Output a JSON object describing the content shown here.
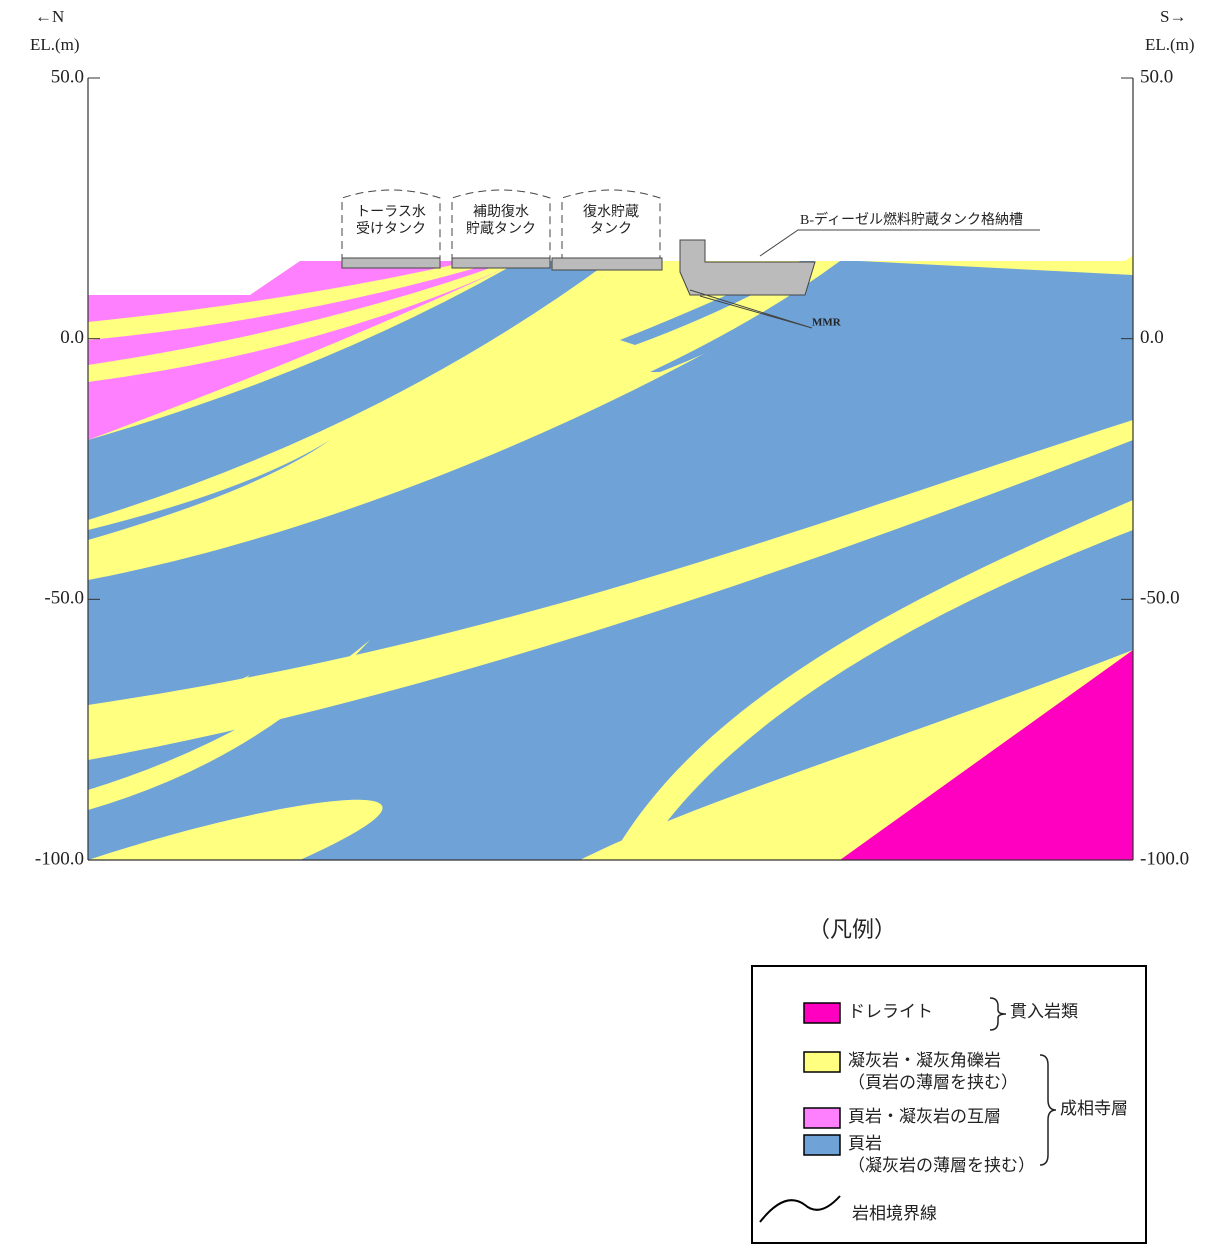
{
  "header": {
    "north": "←N",
    "south": "S→",
    "left_axis_label": "EL.(m)",
    "right_axis_label": "EL.(m)"
  },
  "axis": {
    "ylim": [
      -100,
      50
    ],
    "yticks": [
      {
        "value": 50,
        "label": "50.0"
      },
      {
        "value": 0,
        "label": "0.0"
      },
      {
        "value": -50,
        "label": "-50.0"
      },
      {
        "value": -100,
        "label": "-100.0"
      }
    ]
  },
  "structures": [
    {
      "lines": [
        "トーラス水",
        "受けタンク"
      ]
    },
    {
      "lines": [
        "補助復水",
        "貯蔵タンク"
      ]
    },
    {
      "lines": [
        "復水貯蔵",
        "タンク"
      ]
    }
  ],
  "diesel_label": "B-ディーゼル燃料貯蔵タンク格納槽",
  "mmr_label": "MMR",
  "legend": {
    "title": "（凡例）",
    "items": [
      {
        "lines": [
          "ドレライト"
        ],
        "color": "#ff00c0"
      },
      {
        "lines": [
          "凝灰岩・凝灰角礫岩",
          "（頁岩の薄層を挟む）"
        ],
        "color": "#ffff80"
      },
      {
        "lines": [
          "頁岩・凝灰岩の互層"
        ],
        "color": "#ff80ff"
      },
      {
        "lines": [
          "頁岩",
          "（凝灰岩の薄層を挟む）"
        ],
        "color": "#6fa3d8"
      }
    ],
    "groups": [
      "貫入岩類",
      "成相寺層"
    ],
    "boundary": "岩相境界線"
  }
}
